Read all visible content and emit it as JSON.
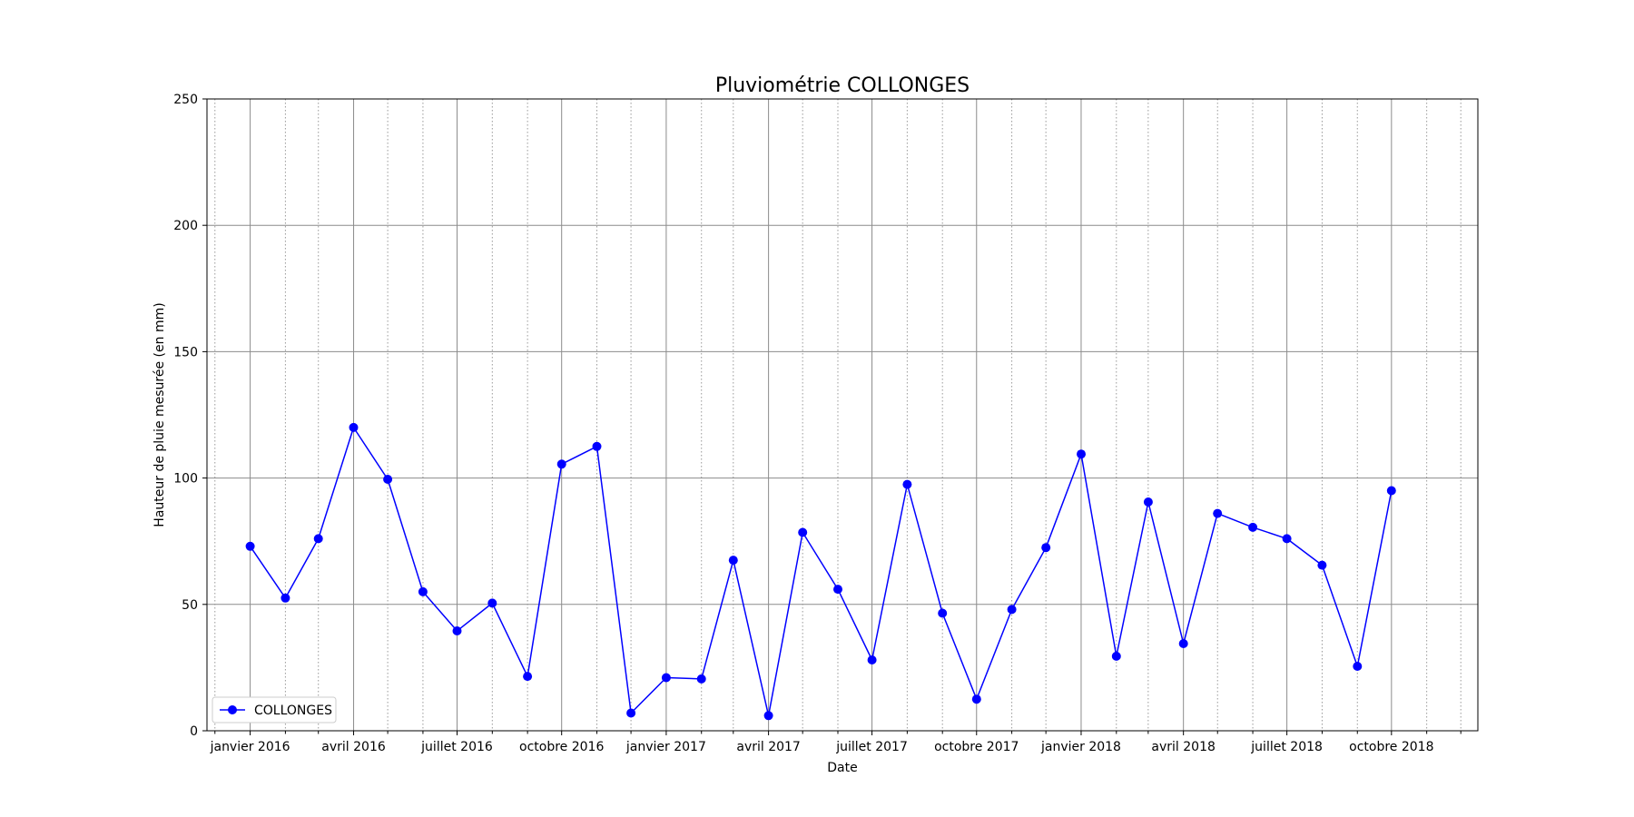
{
  "chart_data": {
    "type": "line",
    "title": "Pluviométrie COLLONGES",
    "xlabel": "Date",
    "ylabel": "Hauteur de pluie mesurée (en mm)",
    "ylim": [
      0,
      250
    ],
    "xlim": [
      "2015-11-24",
      "2018-12-16"
    ],
    "yticks": [
      0,
      50,
      100,
      150,
      200,
      250
    ],
    "xticks": [
      {
        "date": "2016-01-01",
        "label": "janvier 2016"
      },
      {
        "date": "2016-04-01",
        "label": "avril 2016"
      },
      {
        "date": "2016-07-01",
        "label": "juillet 2016"
      },
      {
        "date": "2016-10-01",
        "label": "octobre 2016"
      },
      {
        "date": "2017-01-01",
        "label": "janvier 2017"
      },
      {
        "date": "2017-04-01",
        "label": "avril 2017"
      },
      {
        "date": "2017-07-01",
        "label": "juillet 2017"
      },
      {
        "date": "2017-10-01",
        "label": "octobre 2017"
      },
      {
        "date": "2018-01-01",
        "label": "janvier 2018"
      },
      {
        "date": "2018-04-01",
        "label": "avril 2018"
      },
      {
        "date": "2018-07-01",
        "label": "juillet 2018"
      },
      {
        "date": "2018-10-01",
        "label": "octobre 2018"
      }
    ],
    "grid": {
      "major": "solid",
      "minor": "dotted"
    },
    "legend_position": "lower-left",
    "series": [
      {
        "name": "COLLONGES",
        "color": "#0000ff",
        "marker": "circle",
        "x": [
          "2016-01-01",
          "2016-02-01",
          "2016-03-01",
          "2016-04-01",
          "2016-05-01",
          "2016-06-01",
          "2016-07-01",
          "2016-08-01",
          "2016-09-01",
          "2016-10-01",
          "2016-11-01",
          "2016-12-01",
          "2017-01-01",
          "2017-02-01",
          "2017-03-01",
          "2017-04-01",
          "2017-05-01",
          "2017-06-01",
          "2017-07-01",
          "2017-08-01",
          "2017-09-01",
          "2017-10-01",
          "2017-11-01",
          "2017-12-01",
          "2018-01-01",
          "2018-02-01",
          "2018-03-01",
          "2018-04-01",
          "2018-05-01",
          "2018-06-01",
          "2018-07-01",
          "2018-08-01",
          "2018-09-01",
          "2018-10-01"
        ],
        "values": [
          73,
          52.5,
          76,
          120,
          99.5,
          55,
          39.5,
          50.5,
          21.5,
          105.5,
          112.5,
          7,
          21,
          20.5,
          67.5,
          6,
          78.5,
          56,
          28,
          97.5,
          46.5,
          12.5,
          48,
          72.5,
          109.5,
          29.5,
          90.5,
          34.5,
          86,
          80.5,
          76,
          65.5,
          25.5,
          95
        ]
      }
    ]
  }
}
